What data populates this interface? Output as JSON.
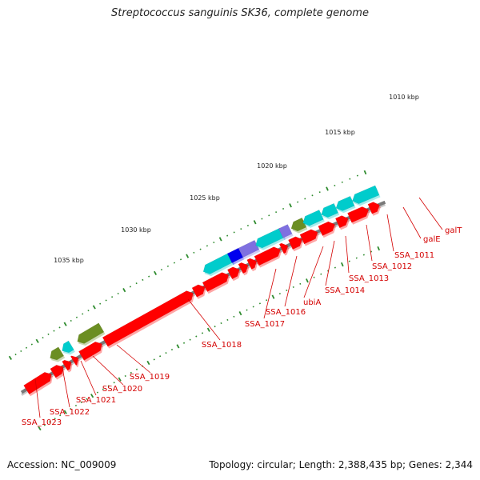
{
  "title": "Streptococcus sanguinis SK36, complete genome",
  "footer": {
    "accession": "Accession: NC_009009",
    "summary": "Topology: circular; Length: 2,388,435 bp; Genes: 2,344"
  },
  "colors": {
    "backbone": "#7a7a7a",
    "cds": "#ff0000",
    "trna": "#00cccc",
    "rrna": "#6b8e23",
    "blue": "#0000ee",
    "purple": "#7f70e0",
    "tick": "#2e8b2e",
    "label": "#d40000"
  },
  "kbp_markers": [
    {
      "label": "1010 kbp",
      "pos": 1010
    },
    {
      "label": "1015 kbp",
      "pos": 1015
    },
    {
      "label": "1020 kbp",
      "pos": 1020
    },
    {
      "label": "1025 kbp",
      "pos": 1025
    },
    {
      "label": "1030 kbp",
      "pos": 1030
    },
    {
      "label": "1035 kbp",
      "pos": 1035
    }
  ],
  "gene_labels": [
    {
      "name": "galT"
    },
    {
      "name": "galE"
    },
    {
      "name": "SSA_1011"
    },
    {
      "name": "SSA_1012"
    },
    {
      "name": "SSA_1013"
    },
    {
      "name": "SSA_1014"
    },
    {
      "name": "ubiA"
    },
    {
      "name": "SSA_1016"
    },
    {
      "name": "SSA_1017"
    },
    {
      "name": "SSA_1018"
    },
    {
      "name": "SSA_1019"
    },
    {
      "name": "SSA_1020"
    },
    {
      "name": "SSA_1021"
    },
    {
      "name": "SSA_1022"
    },
    {
      "name": "SSA_1023"
    }
  ]
}
